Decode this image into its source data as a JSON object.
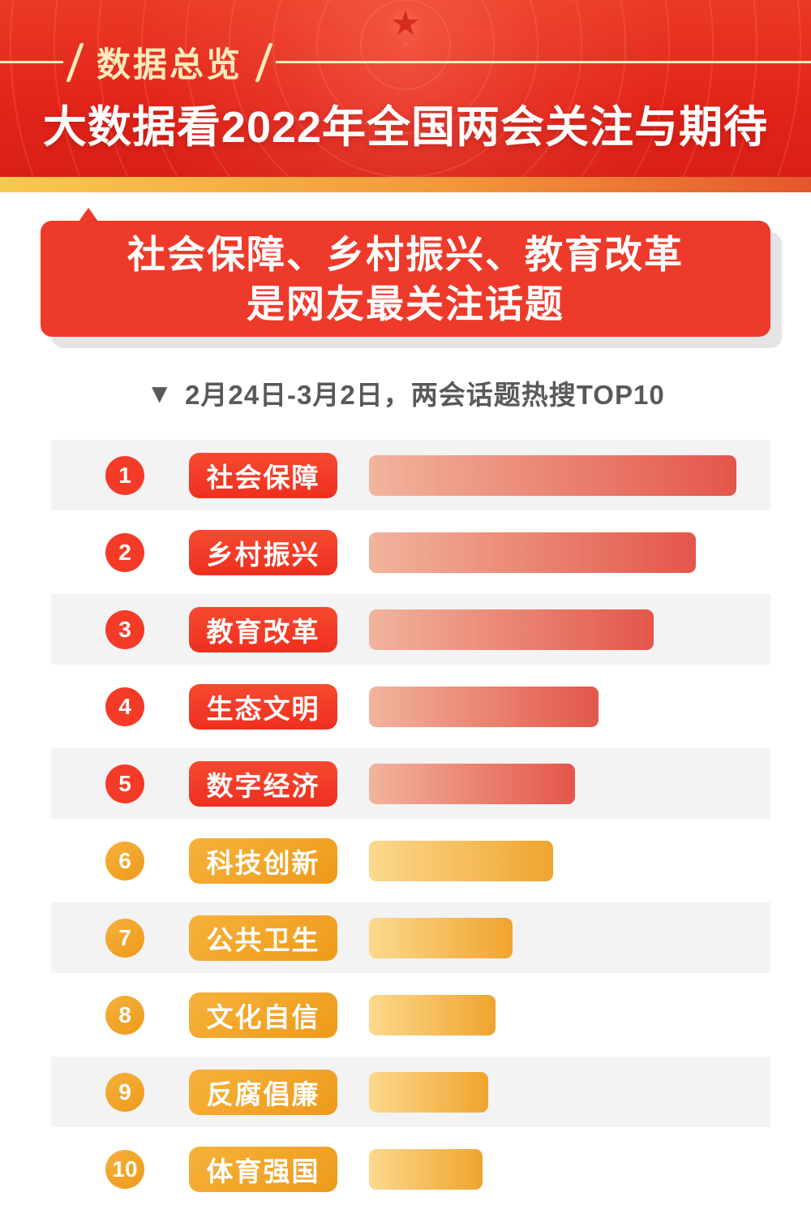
{
  "header": {
    "kicker": "数据总览",
    "title": "大数据看2022年全国两会关注与期待"
  },
  "banner": {
    "line1": "社会保障、乡村振兴、教育改革",
    "line2": "是网友最关注话题"
  },
  "list_header": {
    "marker": "▼",
    "text": "2月24日-3月2日，两会话题热搜TOP10"
  },
  "chart_data": {
    "type": "bar",
    "orientation": "horizontal",
    "title": "2月24日-3月2日，两会话题热搜TOP10",
    "categories": [
      "社会保障",
      "乡村振兴",
      "教育改革",
      "生态文明",
      "数字经济",
      "科技创新",
      "公共卫生",
      "文化自信",
      "反腐倡廉",
      "体育强国"
    ],
    "values": [
      100,
      89,
      77.5,
      62.5,
      56,
      50,
      39,
      34.5,
      32.5,
      31
    ],
    "value_note": "relative hot-search heat estimated from bar lengths; no numeric axis shown in image",
    "xlim": [
      0,
      100
    ],
    "grid": false,
    "legend": "none",
    "items": [
      {
        "rank": "1",
        "label": "社会保障",
        "value": 100,
        "color_group": "red"
      },
      {
        "rank": "2",
        "label": "乡村振兴",
        "value": 89,
        "color_group": "red"
      },
      {
        "rank": "3",
        "label": "教育改革",
        "value": 77.5,
        "color_group": "red"
      },
      {
        "rank": "4",
        "label": "生态文明",
        "value": 62.5,
        "color_group": "red"
      },
      {
        "rank": "5",
        "label": "数字经济",
        "value": 56,
        "color_group": "red"
      },
      {
        "rank": "6",
        "label": "科技创新",
        "value": 50,
        "color_group": "gold"
      },
      {
        "rank": "7",
        "label": "公共卫生",
        "value": 39,
        "color_group": "gold"
      },
      {
        "rank": "8",
        "label": "文化自信",
        "value": 34.5,
        "color_group": "gold"
      },
      {
        "rank": "9",
        "label": "反腐倡廉",
        "value": 32.5,
        "color_group": "gold"
      },
      {
        "rank": "10",
        "label": "体育强国",
        "value": 31,
        "color_group": "gold"
      }
    ]
  },
  "colors": {
    "header_red": "#e6271c",
    "kicker_cream": "#fbeabc",
    "accent_strip_gradient": [
      "#f8c94f",
      "#f2993a",
      "#e4572e"
    ],
    "banner_red": "#ee3a2a",
    "banner_shadow_gray": "#e4e4e4",
    "subtitle_gray": "#5b5858",
    "row_band_gray": "#f3f3f4",
    "rank_red": "#f43b28",
    "rank_gold": "#f0a52c",
    "bar_red_gradient": [
      "#f1b49d",
      "#e4564a"
    ],
    "bar_gold_gradient": [
      "#fbd98d",
      "#f0a42e"
    ]
  }
}
